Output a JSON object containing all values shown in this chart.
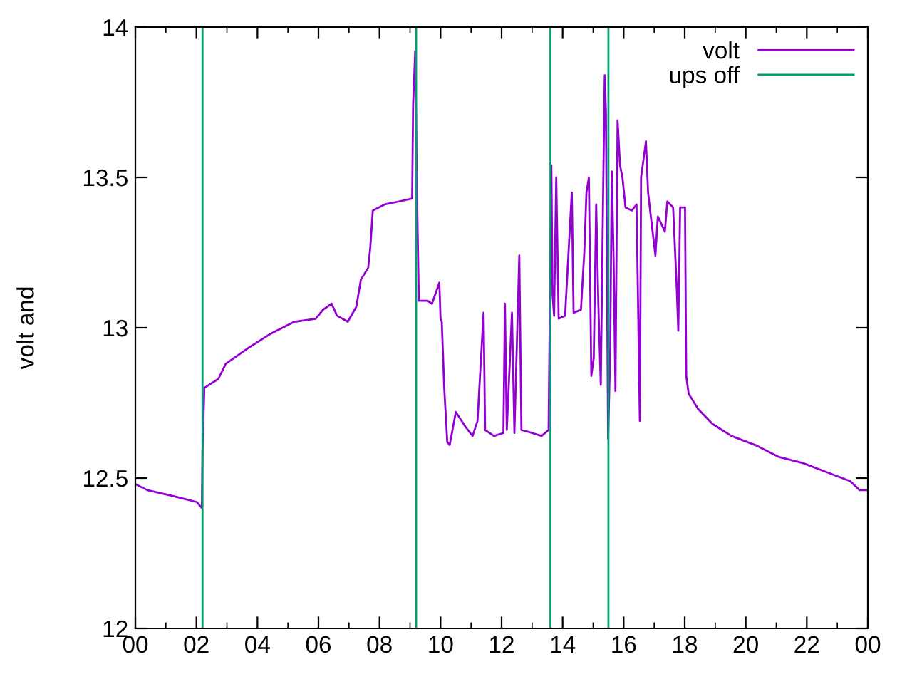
{
  "chart_data": {
    "type": "line",
    "ylabel": "volt and",
    "xlim": [
      0,
      24
    ],
    "ylim": [
      12,
      14
    ],
    "xticks": [
      {
        "value": 0,
        "label": "00"
      },
      {
        "value": 1,
        "label": null
      },
      {
        "value": 2,
        "label": "02"
      },
      {
        "value": 3,
        "label": null
      },
      {
        "value": 4,
        "label": "04"
      },
      {
        "value": 5,
        "label": null
      },
      {
        "value": 6,
        "label": "06"
      },
      {
        "value": 7,
        "label": null
      },
      {
        "value": 8,
        "label": "08"
      },
      {
        "value": 9,
        "label": null
      },
      {
        "value": 10,
        "label": "10"
      },
      {
        "value": 11,
        "label": null
      },
      {
        "value": 12,
        "label": "12"
      },
      {
        "value": 13,
        "label": null
      },
      {
        "value": 14,
        "label": "14"
      },
      {
        "value": 15,
        "label": null
      },
      {
        "value": 16,
        "label": "16"
      },
      {
        "value": 17,
        "label": null
      },
      {
        "value": 18,
        "label": "18"
      },
      {
        "value": 19,
        "label": null
      },
      {
        "value": 20,
        "label": "20"
      },
      {
        "value": 21,
        "label": null
      },
      {
        "value": 22,
        "label": "22"
      },
      {
        "value": 23,
        "label": null
      },
      {
        "value": 24,
        "label": "00"
      }
    ],
    "yticks": [
      12,
      12.5,
      13,
      13.5,
      14
    ],
    "grid": false,
    "legend": "top right",
    "line_style": "solid",
    "marker": "none",
    "series": [
      {
        "name": "volt",
        "color": "#9400d3",
        "x": [
          0.0,
          0.39,
          1.25,
          2.02,
          2.18,
          2.2,
          2.26,
          2.72,
          2.96,
          3.66,
          4.43,
          5.21,
          5.91,
          6.15,
          6.43,
          6.61,
          6.96,
          7.24,
          7.39,
          7.63,
          7.7,
          7.78,
          8.17,
          8.64,
          9.07,
          9.1,
          9.17,
          9.23,
          9.29,
          9.57,
          9.72,
          9.96,
          10.0,
          10.04,
          10.12,
          10.22,
          10.3,
          10.5,
          10.82,
          11.05,
          11.21,
          11.41,
          11.46,
          11.75,
          12.06,
          12.11,
          12.17,
          12.34,
          12.42,
          12.58,
          12.65,
          13.0,
          13.31,
          13.54,
          13.63,
          13.67,
          13.72,
          13.79,
          13.87,
          14.08,
          14.3,
          14.36,
          14.6,
          14.71,
          14.78,
          14.86,
          14.94,
          15.02,
          15.1,
          15.17,
          15.25,
          15.33,
          15.38,
          15.42,
          15.49,
          15.56,
          15.61,
          15.67,
          15.73,
          15.8,
          15.88,
          15.96,
          16.06,
          16.27,
          16.42,
          16.47,
          16.53,
          16.57,
          16.73,
          16.8,
          16.89,
          17.04,
          17.12,
          17.35,
          17.43,
          17.62,
          17.74,
          17.79,
          17.85,
          18.01,
          18.05,
          18.13,
          18.44,
          18.91,
          19.53,
          20.31,
          21.09,
          21.87,
          22.64,
          23.42,
          23.73,
          24.0
        ],
        "values": [
          12.48,
          12.46,
          12.44,
          12.42,
          12.4,
          12.59,
          12.8,
          12.83,
          12.88,
          12.93,
          12.98,
          13.02,
          13.03,
          13.06,
          13.08,
          13.04,
          13.02,
          13.07,
          13.16,
          13.2,
          13.27,
          13.39,
          13.41,
          13.42,
          13.43,
          13.74,
          13.92,
          13.43,
          13.09,
          13.09,
          13.08,
          13.15,
          13.03,
          13.02,
          12.8,
          12.62,
          12.61,
          12.72,
          12.67,
          12.64,
          12.69,
          13.05,
          12.66,
          12.64,
          12.65,
          13.08,
          12.66,
          13.05,
          12.65,
          13.24,
          12.66,
          12.65,
          12.64,
          12.66,
          13.54,
          13.11,
          13.04,
          13.5,
          13.03,
          13.04,
          13.45,
          13.05,
          13.06,
          13.25,
          13.45,
          13.5,
          12.84,
          12.9,
          13.41,
          13.08,
          12.81,
          13.47,
          13.84,
          13.71,
          12.63,
          12.93,
          13.52,
          13.23,
          12.79,
          13.69,
          13.54,
          13.5,
          13.4,
          13.39,
          13.41,
          13.09,
          12.69,
          13.5,
          13.62,
          13.45,
          13.37,
          13.24,
          13.37,
          13.32,
          13.42,
          13.4,
          13.13,
          12.99,
          13.4,
          13.4,
          12.84,
          12.78,
          12.73,
          12.68,
          12.64,
          12.61,
          12.57,
          12.55,
          12.52,
          12.49,
          12.46,
          12.46
        ]
      },
      {
        "name": "ups off",
        "color": "#009e73",
        "x": [
          2.2,
          2.2,
          null,
          9.2,
          9.2,
          null,
          13.6,
          13.6,
          null,
          15.5,
          15.5
        ],
        "values": [
          12,
          14,
          null,
          12,
          14,
          null,
          12,
          14,
          null,
          12,
          14
        ]
      }
    ]
  }
}
